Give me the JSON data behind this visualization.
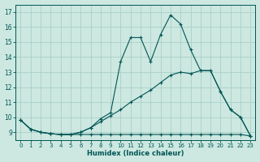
{
  "xlabel": "Humidex (Indice chaleur)",
  "background_color": "#cce8e0",
  "grid_color": "#aacfc8",
  "line_color": "#005555",
  "xlim": [
    -0.5,
    23.5
  ],
  "ylim": [
    8.5,
    17.5
  ],
  "xticks": [
    0,
    1,
    2,
    3,
    4,
    5,
    6,
    7,
    8,
    9,
    10,
    11,
    12,
    13,
    14,
    15,
    16,
    17,
    18,
    19,
    20,
    21,
    22,
    23
  ],
  "yticks": [
    9,
    10,
    11,
    12,
    13,
    14,
    15,
    16,
    17
  ],
  "line1_x": [
    0,
    1,
    2,
    3,
    4,
    5,
    6,
    7,
    8,
    9,
    10,
    11,
    12,
    13,
    14,
    15,
    16,
    17,
    18,
    19,
    20,
    21,
    22,
    23
  ],
  "line1_y": [
    9.8,
    9.2,
    9.0,
    8.9,
    8.85,
    8.85,
    8.85,
    8.85,
    8.85,
    8.85,
    8.85,
    8.85,
    8.85,
    8.85,
    8.85,
    8.85,
    8.85,
    8.85,
    8.85,
    8.85,
    8.85,
    8.85,
    8.85,
    8.75
  ],
  "line2_x": [
    0,
    1,
    2,
    3,
    4,
    5,
    6,
    7,
    8,
    9,
    10,
    11,
    12,
    13,
    14,
    15,
    16,
    17,
    18,
    19,
    20,
    21,
    22,
    23
  ],
  "line2_y": [
    9.8,
    9.2,
    9.0,
    8.9,
    8.85,
    8.85,
    9.0,
    9.3,
    9.7,
    10.1,
    10.5,
    11.0,
    11.4,
    11.8,
    12.3,
    12.8,
    13.0,
    12.9,
    13.1,
    13.1,
    11.7,
    10.5,
    10.0,
    8.75
  ],
  "line3_x": [
    0,
    1,
    2,
    3,
    4,
    5,
    6,
    7,
    8,
    9,
    10,
    11,
    12,
    13,
    14,
    15,
    16,
    17,
    18,
    19,
    20,
    21,
    22,
    23
  ],
  "line3_y": [
    9.8,
    9.2,
    9.0,
    8.9,
    8.85,
    8.85,
    9.0,
    9.3,
    9.9,
    10.3,
    13.7,
    15.3,
    15.3,
    13.7,
    15.5,
    16.8,
    16.2,
    14.5,
    13.1,
    13.1,
    11.7,
    10.5,
    10.0,
    8.75
  ]
}
